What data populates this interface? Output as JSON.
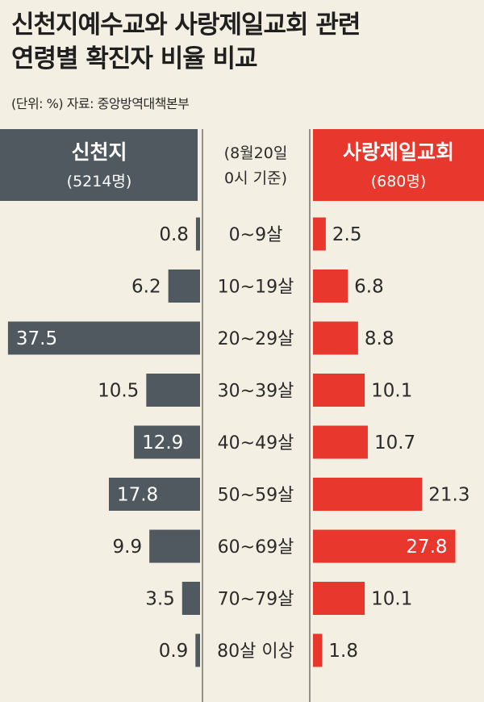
{
  "title_line1": "신천지예수교와 사랑제일교회 관련",
  "title_line2": "연령별 확진자 비율 비교",
  "note": "(단위: %) 자료: 중앙방역대책본부",
  "colors": {
    "left": "#4f595f",
    "right": "#e8372c",
    "background": "#f3efe2",
    "text": "#2a2a2a"
  },
  "chart_data": {
    "type": "bar",
    "title": "신천지예수교와 사랑제일교회 관련 연령별 확진자 비율 비교",
    "unit": "%",
    "basis": [
      "(8월20일",
      "0시 기준)"
    ],
    "categories": [
      "0~9살",
      "10~19살",
      "20~29살",
      "30~39살",
      "40~49살",
      "50~59살",
      "60~69살",
      "70~79살",
      "80살 이상"
    ],
    "series": [
      {
        "name": "신천지",
        "count_label": "(5214명)",
        "values": [
          0.8,
          6.2,
          37.5,
          10.5,
          12.9,
          17.8,
          9.9,
          3.5,
          0.9
        ],
        "labels": [
          "0.8",
          "6.2",
          "37.5",
          "10.5",
          "12.9",
          "17.8",
          "9.9",
          "3.5",
          "0.9"
        ]
      },
      {
        "name": "사랑제일교회",
        "count_label": "(680명)",
        "values": [
          2.5,
          6.8,
          8.8,
          10.1,
          10.7,
          21.3,
          27.8,
          10.1,
          1.8
        ],
        "labels": [
          "2.5",
          "6.8",
          "8.8",
          "10.1",
          "10.7",
          "21.3",
          "27.8",
          "10.1",
          "1.8"
        ]
      }
    ]
  }
}
